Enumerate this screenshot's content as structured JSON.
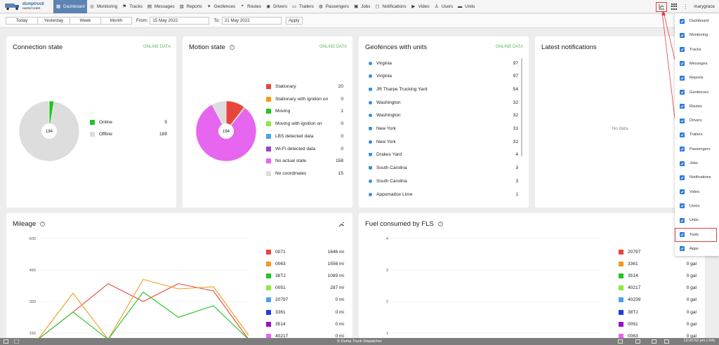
{
  "nav": {
    "logo_line1": "dumptruck",
    "logo_line2": "DISPATCHER",
    "items": [
      {
        "label": "Dashboard"
      },
      {
        "label": "Monitoring"
      },
      {
        "label": "Tracks"
      },
      {
        "label": "Messages"
      },
      {
        "label": "Reports"
      },
      {
        "label": "Geofences"
      },
      {
        "label": "Routes"
      },
      {
        "label": "Drivers"
      },
      {
        "label": "Trailers"
      },
      {
        "label": "Passengers"
      },
      {
        "label": "Jobs"
      },
      {
        "label": "Notifications"
      },
      {
        "label": "Video"
      },
      {
        "label": "Users"
      },
      {
        "label": "Units"
      }
    ],
    "user": "marygrace",
    "kebab": "⋮"
  },
  "toolbar": {
    "range_buttons": [
      "Today",
      "Yesterday",
      "Week",
      "Month"
    ],
    "from_label": "From:",
    "from_value": "15 May 2022",
    "to_label": "To:",
    "to_value": "21 May 2022",
    "apply_label": "Apply"
  },
  "connection": {
    "title": "Connection state",
    "tag": "ONLINE DATA",
    "center": "194",
    "legend": [
      {
        "label": "Online",
        "value": "5",
        "color": "#22c422"
      },
      {
        "label": "Offline",
        "value": "189",
        "color": "#dddddd"
      }
    ]
  },
  "motion": {
    "title": "Motion state",
    "tag": "ONLINE DATA",
    "center": "194",
    "legend": [
      {
        "label": "Stationary",
        "value": "20",
        "color": "#e8463c"
      },
      {
        "label": "Stationary with ignition on",
        "value": "0",
        "color": "#f29a1f"
      },
      {
        "label": "Moving",
        "value": "1",
        "color": "#22c422"
      },
      {
        "label": "Moving with ignition on",
        "value": "0",
        "color": "#8ee83c"
      },
      {
        "label": "LBS detected data",
        "value": "0",
        "color": "#4aa3e8"
      },
      {
        "label": "Wi-Fi detected data",
        "value": "0",
        "color": "#9b3fcf"
      },
      {
        "label": "No actual state",
        "value": "158",
        "color": "#e766ef"
      },
      {
        "label": "No coordinates",
        "value": "15",
        "color": "#dddddd"
      }
    ]
  },
  "geofences": {
    "title": "Geofences with units",
    "tag": "ONLINE DATA",
    "rows": [
      {
        "name": "Virginia",
        "value": "97",
        "pin": "dot"
      },
      {
        "name": "Virginia",
        "value": "97",
        "pin": "dot"
      },
      {
        "name": "JR Tharpe Trucking Yard",
        "value": "54",
        "pin": "shield"
      },
      {
        "name": "Washington",
        "value": "32",
        "pin": "dot"
      },
      {
        "name": "Washington",
        "value": "32",
        "pin": "dot"
      },
      {
        "name": "New York",
        "value": "31",
        "pin": "shield"
      },
      {
        "name": "New York",
        "value": "31",
        "pin": "dot"
      },
      {
        "name": "Drakes Yard",
        "value": "4",
        "pin": "shield"
      },
      {
        "name": "South Carolina",
        "value": "3",
        "pin": "shield"
      },
      {
        "name": "South Carolina",
        "value": "3",
        "pin": "dot"
      },
      {
        "name": "Appomattox Lime",
        "value": "1",
        "pin": "dot"
      }
    ]
  },
  "notifications": {
    "title": "Latest notifications",
    "empty": "No data"
  },
  "mileage": {
    "title": "Mileage",
    "legend": [
      {
        "label": "0071",
        "value": "1646 mi",
        "color": "#e8463c"
      },
      {
        "label": "0063",
        "value": "1556 mi",
        "color": "#f29a1f"
      },
      {
        "label": "38TJ",
        "value": "1089 mi",
        "color": "#22c422"
      },
      {
        "label": "0051",
        "value": "287 mi",
        "color": "#8ee83c"
      },
      {
        "label": "20797",
        "value": "0 mi",
        "color": "#4aa3e8"
      },
      {
        "label": "3361",
        "value": "0 mi",
        "color": "#1d3fe0"
      },
      {
        "label": "3514",
        "value": "0 mi",
        "color": "#9b10c8"
      },
      {
        "label": "40217",
        "value": "0 mi",
        "color": "#e766ef"
      }
    ]
  },
  "fuel": {
    "title": "Fuel consumed by FLS",
    "legend": [
      {
        "label": "20797",
        "value": "0 gal",
        "color": "#e8463c"
      },
      {
        "label": "3361",
        "value": "0 gal",
        "color": "#f29a1f"
      },
      {
        "label": "3514",
        "value": "0 gal",
        "color": "#22c422"
      },
      {
        "label": "40217",
        "value": "0 gal",
        "color": "#8ee83c"
      },
      {
        "label": "40239",
        "value": "0 gal",
        "color": "#4aa3e8"
      },
      {
        "label": "38TJ",
        "value": "0 gal",
        "color": "#1d3fe0"
      },
      {
        "label": "0051",
        "value": "0 gal",
        "color": "#9b10c8"
      },
      {
        "label": "0063",
        "value": "0 gal",
        "color": "#e766ef"
      }
    ]
  },
  "chart_data": [
    {
      "type": "pie",
      "title": "Connection state",
      "categories": [
        "Online",
        "Offline"
      ],
      "values": [
        5,
        189
      ]
    },
    {
      "type": "pie",
      "title": "Motion state",
      "categories": [
        "Stationary",
        "Stationary with ignition on",
        "Moving",
        "Moving with ignition on",
        "LBS detected data",
        "Wi-Fi detected data",
        "No actual state",
        "No coordinates"
      ],
      "values": [
        20,
        0,
        1,
        0,
        0,
        0,
        158,
        15
      ]
    },
    {
      "type": "line",
      "title": "Mileage",
      "xlabel": "",
      "ylabel": "",
      "yticks": [
        150,
        300,
        450,
        600
      ],
      "ylim": [
        150,
        600
      ],
      "series": [
        {
          "name": "0071",
          "color": "#e8463c",
          "values": [
            120,
            250,
            385,
            300,
            385,
            350,
            120
          ]
        },
        {
          "name": "0063",
          "color": "#f29a1f",
          "values": [
            120,
            340,
            120,
            405,
            360,
            370,
            140
          ]
        },
        {
          "name": "38TJ",
          "color": "#22c422",
          "values": [
            120,
            250,
            120,
            345,
            225,
            280,
            120
          ]
        }
      ]
    },
    {
      "type": "line",
      "title": "Fuel consumed by FLS",
      "xlabel": "",
      "ylabel": "",
      "yticks": [
        1,
        2,
        3,
        4
      ],
      "ylim": [
        1,
        4
      ],
      "series": []
    }
  ],
  "dropdown": {
    "items": [
      "Dashboard",
      "Monitoring",
      "Tracks",
      "Messages",
      "Reports",
      "Geofences",
      "Routes",
      "Drivers",
      "Trailers",
      "Passengers",
      "Jobs",
      "Notifications",
      "Video",
      "Users",
      "Units",
      "Tools",
      "Apps"
    ],
    "highlighted": "Tools"
  },
  "statusbar": {
    "copyright": "© Dump Truck Dispatcher",
    "time": "12:20:52 pm (-04)"
  }
}
